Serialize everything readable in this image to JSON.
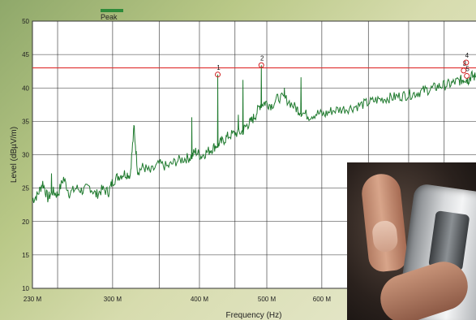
{
  "chart_data": {
    "type": "line",
    "xlabel": "Frequency (Hz)",
    "ylabel": "Level (dBµV/m)",
    "xscale": "log",
    "xlim": [
      230000000,
      1000000000
    ],
    "ylim": [
      10,
      50
    ],
    "x_ticks": [
      {
        "value": 230000000,
        "label": "230 M"
      },
      {
        "value": 300000000,
        "label": "300 M"
      },
      {
        "value": 400000000,
        "label": "400 M"
      },
      {
        "value": 500000000,
        "label": "500 M"
      },
      {
        "value": 600000000,
        "label": "600 M"
      }
    ],
    "y_ticks": [
      10,
      15,
      20,
      25,
      30,
      35,
      40,
      45,
      50
    ],
    "grid": true,
    "legend": {
      "position": "top-left",
      "entries": [
        {
          "name": "Peak",
          "color": "#2e8b3a"
        }
      ]
    },
    "limit_line": {
      "value": 43,
      "color": "#e03030"
    },
    "series": [
      {
        "name": "Peak",
        "color": "#1f7a2e",
        "x": [
          230000000,
          234000000,
          238000000,
          242000000,
          246000000,
          250000000,
          255000000,
          260000000,
          266000000,
          272000000,
          278000000,
          284000000,
          290000000,
          296000000,
          300000000,
          306000000,
          312000000,
          318000000,
          322000000,
          326000000,
          332000000,
          340000000,
          350000000,
          360000000,
          370000000,
          380000000,
          388000000,
          395000000,
          402000000,
          410000000,
          418000000,
          425000000,
          432000000,
          440000000,
          450000000,
          460000000,
          468000000,
          475000000,
          482000000,
          490000000,
          498000000,
          508000000,
          520000000,
          535000000,
          550000000,
          560000000,
          575000000,
          590000000,
          605000000,
          620000000,
          640000000,
          660000000,
          680000000,
          700000000,
          720000000,
          740000000,
          760000000,
          780000000,
          800000000,
          820000000,
          840000000,
          860000000,
          880000000,
          900000000,
          920000000,
          940000000,
          955000000,
          965000000,
          975000000,
          985000000,
          1000000000
        ],
        "y": [
          23.2,
          24.0,
          25.8,
          23.5,
          24.5,
          24.0,
          26.5,
          24.2,
          25.0,
          24.6,
          25.2,
          24.0,
          24.8,
          24.4,
          26.0,
          26.8,
          27.2,
          27.0,
          34.0,
          27.5,
          28.2,
          27.4,
          28.6,
          28.2,
          29.0,
          29.4,
          29.6,
          30.5,
          29.8,
          30.4,
          31.0,
          31.6,
          32.0,
          32.8,
          33.2,
          33.4,
          34.4,
          35.0,
          36.0,
          37.6,
          37.8,
          37.4,
          38.6,
          38.2,
          37.0,
          36.4,
          35.8,
          36.2,
          36.0,
          36.6,
          36.8,
          37.0,
          37.4,
          37.8,
          38.2,
          38.4,
          38.6,
          38.8,
          39.0,
          39.2,
          39.6,
          39.8,
          40.2,
          40.4,
          40.6,
          41.0,
          41.2,
          41.4,
          41.2,
          41.8,
          41.6
        ]
      }
    ],
    "spikes": [
      {
        "x": 245000000,
        "y": 27.2
      },
      {
        "x": 322000000,
        "y": 34.2
      },
      {
        "x": 390000000,
        "y": 35.6
      },
      {
        "x": 425000000,
        "y": 42.0
      },
      {
        "x": 455000000,
        "y": 36.0
      },
      {
        "x": 462000000,
        "y": 41.2
      },
      {
        "x": 491000000,
        "y": 43.4
      },
      {
        "x": 530000000,
        "y": 40.0
      },
      {
        "x": 560000000,
        "y": 41.6
      }
    ],
    "markers": [
      {
        "label": "1",
        "x": 425000000,
        "y": 42.0
      },
      {
        "label": "2",
        "x": 491000000,
        "y": 43.4
      },
      {
        "label": "3",
        "x": 960000000,
        "y": 42.6
      },
      {
        "label": "4",
        "x": 968000000,
        "y": 43.8
      },
      {
        "label": "5",
        "x": 970000000,
        "y": 41.8
      }
    ]
  }
}
